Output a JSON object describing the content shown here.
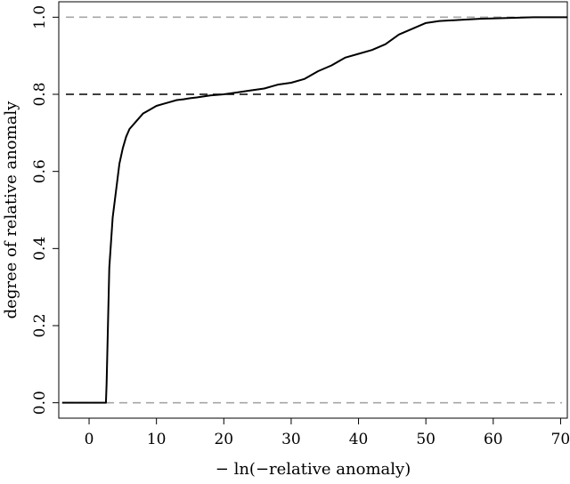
{
  "chart_data": {
    "type": "line",
    "title": "",
    "xlabel": "− ln(−relative anomaly)",
    "ylabel": "degree of relative anomaly",
    "xlim": [
      -4.5,
      71
    ],
    "ylim": [
      -0.04,
      1.04
    ],
    "x_ticks": [
      0,
      10,
      20,
      30,
      40,
      50,
      60,
      70
    ],
    "x_tick_labels": [
      "0",
      "10",
      "20",
      "30",
      "40",
      "50",
      "60",
      "70"
    ],
    "y_ticks": [
      0.0,
      0.2,
      0.4,
      0.6,
      0.8,
      1.0
    ],
    "y_tick_labels": [
      "0.0",
      "0.2",
      "0.4",
      "0.6",
      "0.8",
      "1.0"
    ],
    "grid": false,
    "legend": "none",
    "reference_lines": [
      {
        "y": 0.0,
        "style": "dashed",
        "color": "#a6a6a6"
      },
      {
        "y": 0.8,
        "style": "dashed",
        "color": "#000000"
      },
      {
        "y": 1.0,
        "style": "dashed",
        "color": "#a6a6a6"
      }
    ],
    "series": [
      {
        "color": "#000000",
        "x": [
          -4,
          2.5,
          2.6,
          2.8,
          3.0,
          3.5,
          4.0,
          4.5,
          5.0,
          5.5,
          6.0,
          7.0,
          8.0,
          9.0,
          10.0,
          11.0,
          12.0,
          13.0,
          14.0,
          15.0,
          16.0,
          18.0,
          20.0,
          22.0,
          24.0,
          26.0,
          28.0,
          30.0,
          32.0,
          34.0,
          36.0,
          38.0,
          40.0,
          42.0,
          44.0,
          46.0,
          48.0,
          50.0,
          52.0,
          55.0,
          58.0,
          62.0,
          66.0,
          71.0
        ],
        "y": [
          0.0,
          0.0,
          0.05,
          0.2,
          0.35,
          0.48,
          0.55,
          0.62,
          0.66,
          0.69,
          0.71,
          0.73,
          0.75,
          0.76,
          0.77,
          0.775,
          0.78,
          0.785,
          0.787,
          0.79,
          0.792,
          0.797,
          0.8,
          0.805,
          0.81,
          0.815,
          0.825,
          0.83,
          0.84,
          0.86,
          0.875,
          0.895,
          0.905,
          0.915,
          0.93,
          0.955,
          0.97,
          0.985,
          0.99,
          0.993,
          0.996,
          0.998,
          1.0,
          1.0
        ]
      }
    ]
  }
}
